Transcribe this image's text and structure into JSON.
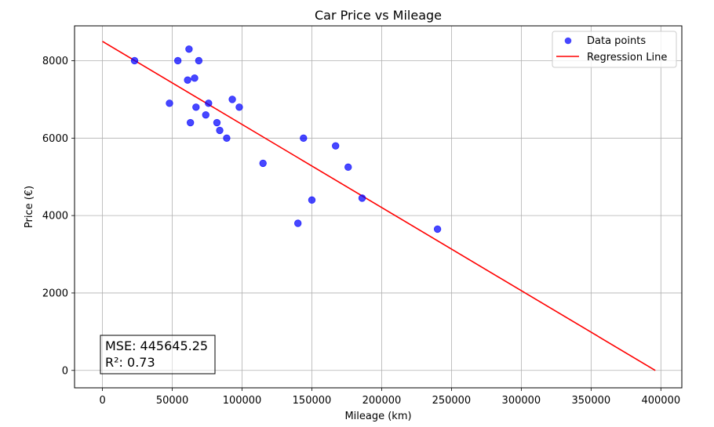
{
  "chart_data": {
    "type": "scatter",
    "title": "Car Price vs Mileage",
    "xlabel": "Mileage (km)",
    "ylabel": "Price (€)",
    "xlim": [
      -20000,
      415000
    ],
    "ylim": [
      -450,
      8900
    ],
    "xticks": [
      0,
      50000,
      100000,
      150000,
      200000,
      250000,
      300000,
      350000,
      400000
    ],
    "yticks": [
      0,
      2000,
      4000,
      6000,
      8000
    ],
    "grid": true,
    "legend_position": "top-right",
    "series": [
      {
        "name": "Data points",
        "kind": "scatter",
        "color": "#0000ff",
        "points": [
          [
            23000,
            8000
          ],
          [
            48000,
            6900
          ],
          [
            54000,
            8000
          ],
          [
            62000,
            8300
          ],
          [
            61000,
            7500
          ],
          [
            66000,
            7550
          ],
          [
            69000,
            8000
          ],
          [
            67000,
            6800
          ],
          [
            76000,
            6900
          ],
          [
            63000,
            6400
          ],
          [
            74000,
            6600
          ],
          [
            82000,
            6400
          ],
          [
            84000,
            6200
          ],
          [
            89000,
            6000
          ],
          [
            93000,
            7000
          ],
          [
            98000,
            6800
          ],
          [
            115000,
            5350
          ],
          [
            140000,
            3800
          ],
          [
            144000,
            6000
          ],
          [
            150000,
            4400
          ],
          [
            167000,
            5800
          ],
          [
            176000,
            5250
          ],
          [
            186000,
            4450
          ],
          [
            240000,
            3650
          ]
        ]
      },
      {
        "name": "Regression Line",
        "kind": "line",
        "color": "#ff0000",
        "points": [
          [
            0,
            8500
          ],
          [
            396000,
            0
          ]
        ]
      }
    ],
    "annotation": {
      "mse": "MSE: 445645.25",
      "r2": "R²: 0.73"
    }
  }
}
